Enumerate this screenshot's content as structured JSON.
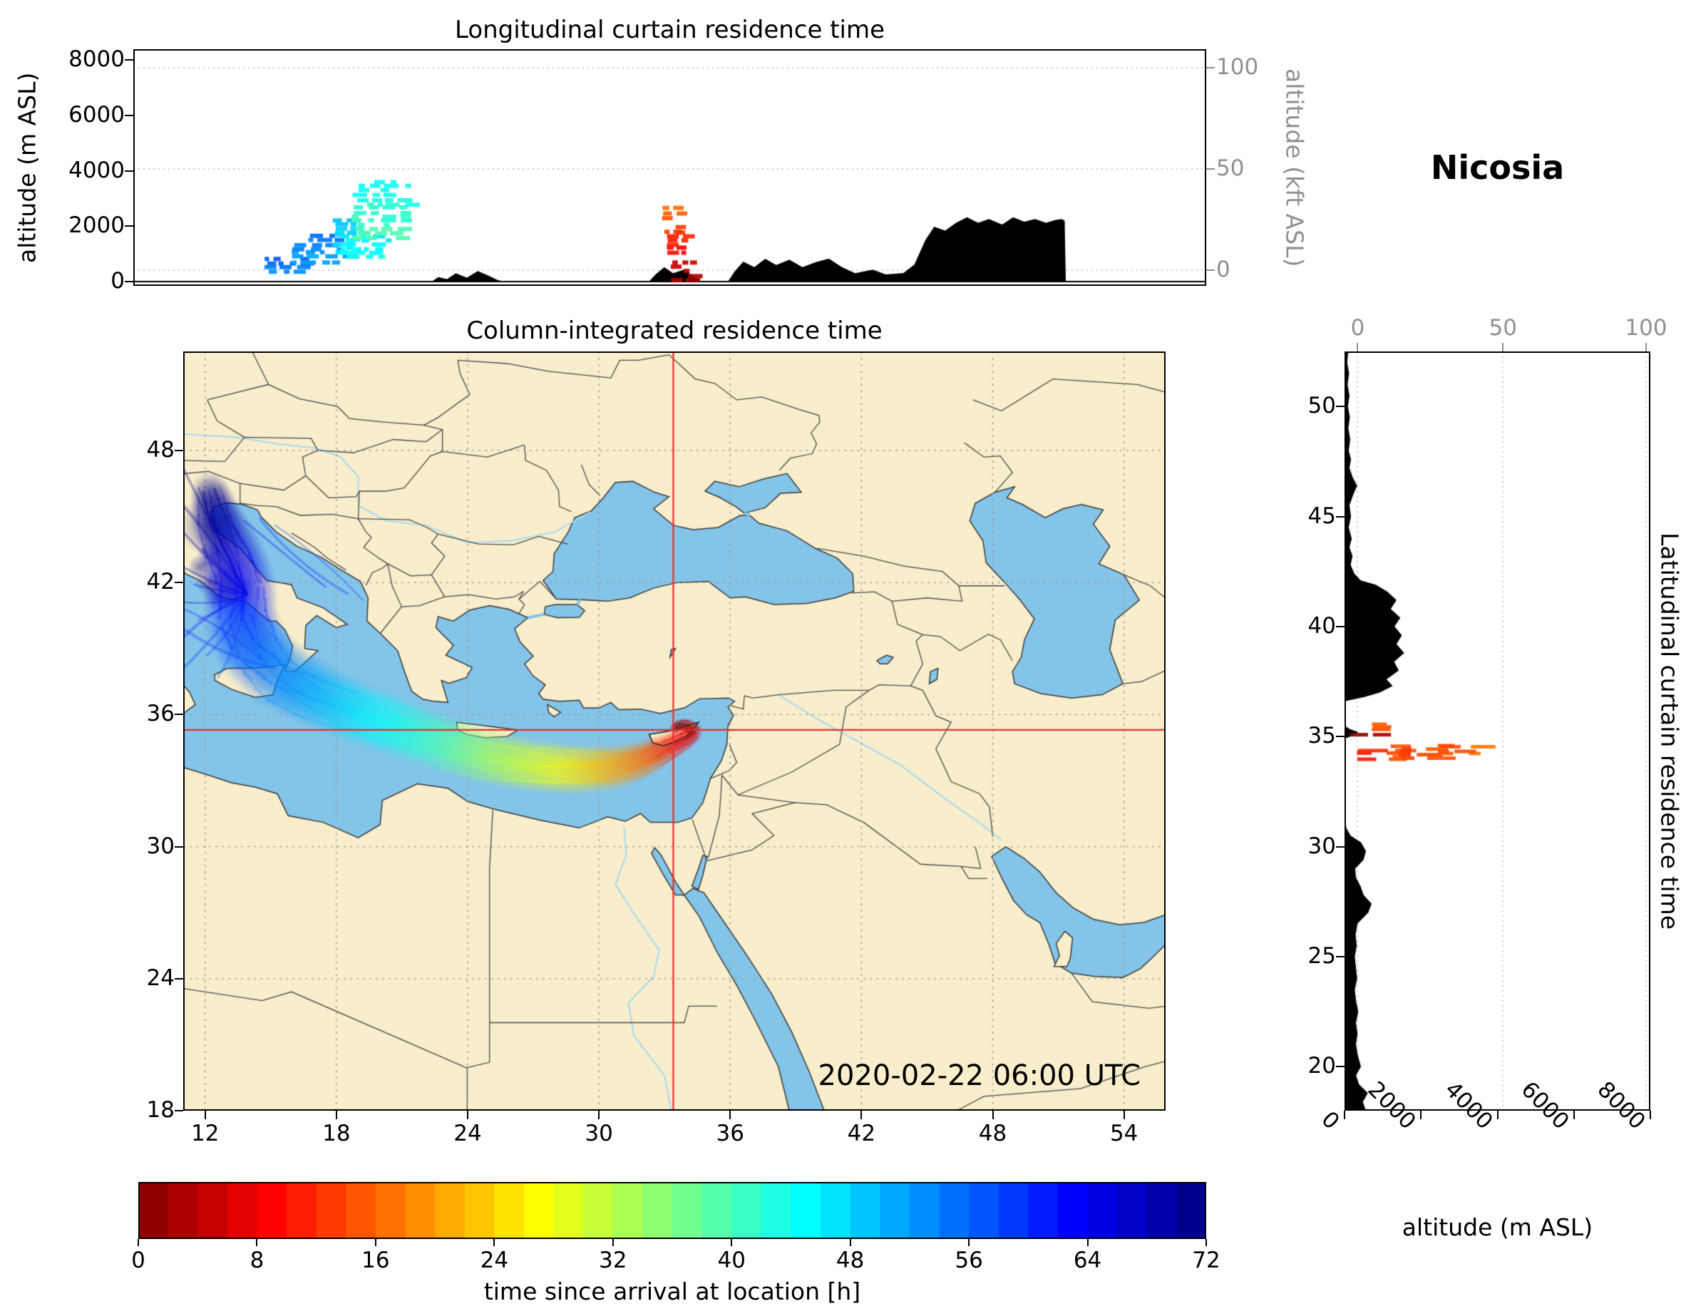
{
  "figure": {
    "station": "Nicosia",
    "timestamp": "2020-02-22 06:00 UTC"
  },
  "panels": {
    "top": {
      "title": "Longitudinal curtain residence time",
      "ylabel": "altitude (m ASL)",
      "ylabel_right": "altitude (kft ASL)",
      "yticks": [
        0,
        2000,
        4000,
        6000,
        8000
      ],
      "yticks_right": [
        0,
        50,
        100
      ]
    },
    "map": {
      "title": "Column-integrated residence time",
      "xticks": [
        12,
        18,
        24,
        30,
        36,
        42,
        48,
        54
      ],
      "yticks": [
        18,
        24,
        30,
        36,
        42,
        48
      ]
    },
    "right": {
      "side_label": "Latitudinal curtain residence time",
      "xlabel": "altitude (m ASL)",
      "xticks": [
        0,
        2000,
        4000,
        6000,
        8000
      ],
      "xticks_top": [
        0,
        50,
        100
      ],
      "yticks": [
        20,
        25,
        30,
        35,
        40,
        45,
        50
      ]
    },
    "colorbar": {
      "label": "time since arrival at location [h]",
      "ticks": [
        0,
        8,
        16,
        24,
        32,
        40,
        48,
        56,
        64,
        72
      ]
    }
  },
  "chart_data": {
    "type": "heatmap",
    "description": "Backward-plume residence time for receptor Nicosia: column-integrated map plus longitudinal (altitude vs longitude) and latitudinal (altitude vs latitude) curtains. Color encodes time since arrival at location, 0-72 h, reversed-jet colormap (0 h dark red at Cyprus, 72 h dark blue over northern Italy). Black silhouettes are terrain profiles.",
    "receptor": {
      "name": "Nicosia",
      "lon": 33.4,
      "lat": 35.3
    },
    "color_scale": {
      "unit": "h",
      "min": 0,
      "max": 72,
      "colormap": "jet reversed",
      "n_segments": 36
    },
    "map_axes": {
      "lon_range": [
        11,
        55.9
      ],
      "lat_range": [
        18,
        52.5
      ],
      "grid_step_deg": 6
    },
    "top_curtain_axes": {
      "lon_range": [
        8.7,
        57.6
      ],
      "alt_range_m": [
        0,
        8000
      ]
    },
    "right_curtain_axes": {
      "lat_range": [
        18,
        52.5
      ],
      "alt_range_m": [
        0,
        8000
      ]
    },
    "plume_path": [
      [
        12.2,
        46.2,
        1.4,
        72
      ],
      [
        12.6,
        44.8,
        2.0,
        69
      ],
      [
        13.3,
        43.2,
        2.4,
        66
      ],
      [
        13.7,
        41.8,
        2.6,
        63
      ],
      [
        13.6,
        40.3,
        2.8,
        60
      ],
      [
        14.2,
        38.9,
        2.8,
        57
      ],
      [
        15.4,
        37.8,
        2.7,
        54
      ],
      [
        17.1,
        36.9,
        2.5,
        51
      ],
      [
        18.9,
        36.1,
        2.4,
        47
      ],
      [
        20.8,
        35.4,
        2.3,
        44
      ],
      [
        22.8,
        34.7,
        2.2,
        40
      ],
      [
        24.8,
        34.1,
        2.1,
        34
      ],
      [
        26.8,
        33.7,
        2.0,
        30
      ],
      [
        28.8,
        33.5,
        1.9,
        26
      ],
      [
        30.7,
        33.6,
        1.7,
        21
      ],
      [
        32.1,
        34.0,
        1.4,
        17
      ],
      [
        33.1,
        34.5,
        1.1,
        12
      ],
      [
        33.9,
        34.9,
        0.9,
        8
      ],
      [
        34.35,
        35.2,
        0.7,
        5
      ],
      [
        34.1,
        35.5,
        0.55,
        3
      ],
      [
        33.7,
        35.55,
        0.45,
        1.5
      ],
      [
        33.45,
        35.35,
        0.4,
        0.5
      ]
    ],
    "plume_cores": [
      [
        12.4,
        43.2,
        0.75,
        68
      ],
      [
        12.9,
        42.3,
        0.85,
        67
      ],
      [
        13.4,
        41.6,
        0.85,
        66
      ],
      [
        12.2,
        42.0,
        0.65,
        69
      ],
      [
        11.8,
        42.7,
        0.6,
        70
      ],
      [
        12.6,
        41.4,
        0.7,
        67
      ],
      [
        12.3,
        44.6,
        1.5,
        71
      ]
    ],
    "plume_fan_streaks": [
      [
        13.9,
        41.5,
        11,
        47.2,
        72
      ],
      [
        13.9,
        41.5,
        11.7,
        46.3,
        71
      ],
      [
        13.9,
        41.5,
        11,
        45.5,
        70
      ],
      [
        13.9,
        41.5,
        12.3,
        44.9,
        70
      ],
      [
        13.9,
        41.5,
        11,
        44.3,
        69
      ],
      [
        13.9,
        41.5,
        11.9,
        43.5,
        69
      ],
      [
        13.9,
        41.5,
        11,
        42.7,
        68
      ],
      [
        13.9,
        41.5,
        11.5,
        41.9,
        67
      ],
      [
        13.9,
        41.5,
        11,
        41.1,
        66
      ],
      [
        13.9,
        41.5,
        11.7,
        40.3,
        64
      ],
      [
        13.9,
        41.5,
        11,
        39.5,
        62
      ],
      [
        13.9,
        41.5,
        12.1,
        38.7,
        60
      ],
      [
        13.9,
        41.5,
        11,
        38.1,
        59
      ],
      [
        13.9,
        41.5,
        12.6,
        37.7,
        58
      ],
      [
        13.8,
        44.8,
        17.5,
        41.8,
        62
      ],
      [
        14.5,
        44.9,
        18.5,
        41.5,
        60
      ],
      [
        15.2,
        44.6,
        19.2,
        41.2,
        58
      ],
      [
        11,
        40.8,
        14.6,
        38.5,
        60
      ],
      [
        11,
        39.9,
        15.2,
        38.1,
        59
      ]
    ],
    "top_curtain_clusters": [
      {
        "lon": [
          14.6,
          16.7
        ],
        "alt_m": [
          250,
          900
        ],
        "t_h": [
          52,
          58
        ]
      },
      {
        "lon": [
          15.7,
          18.4
        ],
        "alt_m": [
          650,
          1700
        ],
        "t_h": [
          50,
          56
        ]
      },
      {
        "lon": [
          17.7,
          19.3
        ],
        "alt_m": [
          1000,
          2300
        ],
        "t_h": [
          45,
          50
        ]
      },
      {
        "lon": [
          18.1,
          20.3
        ],
        "alt_m": [
          800,
          1700
        ],
        "t_h": [
          42,
          48
        ]
      },
      {
        "lon": [
          18.6,
          21.5
        ],
        "alt_m": [
          1500,
          3650
        ],
        "t_h": [
          38,
          46
        ]
      },
      {
        "lon": [
          33.1,
          34.2
        ],
        "alt_m": [
          0,
          900
        ],
        "t_h": [
          1,
          8
        ]
      },
      {
        "lon": [
          33.0,
          33.9
        ],
        "alt_m": [
          850,
          1850
        ],
        "t_h": [
          7,
          14
        ]
      },
      {
        "lon": [
          32.8,
          33.6
        ],
        "alt_m": [
          1750,
          2700
        ],
        "t_h": [
          11,
          18
        ]
      }
    ],
    "right_curtain_clusters": [
      {
        "lat": [
          34.85,
          35.3
        ],
        "alt_m": [
          120,
          800
        ],
        "t_h": [
          0,
          4
        ]
      },
      {
        "lat": [
          33.9,
          34.6
        ],
        "alt_m": [
          300,
          1500
        ],
        "t_h": [
          10,
          16
        ]
      },
      {
        "lat": [
          33.95,
          34.55
        ],
        "alt_m": [
          1400,
          2600
        ],
        "t_h": [
          12,
          17
        ]
      },
      {
        "lat": [
          34.05,
          34.7
        ],
        "alt_m": [
          2400,
          3700
        ],
        "t_h": [
          13,
          19
        ]
      },
      {
        "lat": [
          35.25,
          35.65
        ],
        "alt_m": [
          700,
          1400
        ],
        "t_h": [
          14,
          20
        ]
      }
    ],
    "terrain_profile_lon": [
      [
        8.7,
        0
      ],
      [
        22.3,
        0
      ],
      [
        22.6,
        160
      ],
      [
        23.0,
        90
      ],
      [
        23.4,
        300
      ],
      [
        23.9,
        140
      ],
      [
        24.4,
        380
      ],
      [
        24.9,
        210
      ],
      [
        25.3,
        60
      ],
      [
        25.6,
        0
      ],
      [
        32.2,
        0
      ],
      [
        32.5,
        260
      ],
      [
        32.9,
        520
      ],
      [
        33.3,
        300
      ],
      [
        33.8,
        430
      ],
      [
        34.3,
        160
      ],
      [
        34.6,
        0
      ],
      [
        35.8,
        0
      ],
      [
        36.1,
        360
      ],
      [
        36.5,
        720
      ],
      [
        37.0,
        520
      ],
      [
        37.5,
        820
      ],
      [
        38.0,
        600
      ],
      [
        38.6,
        790
      ],
      [
        39.2,
        520
      ],
      [
        39.8,
        700
      ],
      [
        40.4,
        830
      ],
      [
        41.0,
        520
      ],
      [
        41.6,
        300
      ],
      [
        42.4,
        430
      ],
      [
        43.0,
        260
      ],
      [
        43.8,
        310
      ],
      [
        44.3,
        620
      ],
      [
        44.8,
        1500
      ],
      [
        45.2,
        1980
      ],
      [
        45.7,
        1840
      ],
      [
        46.2,
        2120
      ],
      [
        46.7,
        2320
      ],
      [
        47.2,
        2120
      ],
      [
        47.7,
        2260
      ],
      [
        48.3,
        2060
      ],
      [
        48.8,
        2320
      ],
      [
        49.3,
        2160
      ],
      [
        49.8,
        2260
      ],
      [
        50.3,
        2120
      ],
      [
        50.7,
        2220
      ],
      [
        51.0,
        2260
      ],
      [
        51.15,
        2200
      ],
      [
        51.2,
        0
      ],
      [
        57.6,
        0
      ]
    ],
    "terrain_profile_lat": [
      [
        18,
        560
      ],
      [
        18.4,
        480
      ],
      [
        18.8,
        610
      ],
      [
        19.2,
        380
      ],
      [
        19.6,
        300
      ],
      [
        20,
        430
      ],
      [
        20.5,
        350
      ],
      [
        21,
        300
      ],
      [
        21.5,
        340
      ],
      [
        22,
        300
      ],
      [
        22.5,
        360
      ],
      [
        23,
        300
      ],
      [
        23.5,
        270
      ],
      [
        24,
        330
      ],
      [
        24.5,
        300
      ],
      [
        25,
        270
      ],
      [
        25.5,
        320
      ],
      [
        26,
        290
      ],
      [
        26.5,
        340
      ],
      [
        27,
        620
      ],
      [
        27.4,
        710
      ],
      [
        27.8,
        500
      ],
      [
        28.2,
        420
      ],
      [
        28.6,
        300
      ],
      [
        29,
        280
      ],
      [
        29.4,
        500
      ],
      [
        29.8,
        560
      ],
      [
        30.2,
        430
      ],
      [
        30.5,
        160
      ],
      [
        30.8,
        60
      ],
      [
        31.1,
        0
      ],
      [
        34.9,
        0
      ],
      [
        35.05,
        220
      ],
      [
        35.2,
        360
      ],
      [
        35.35,
        130
      ],
      [
        35.5,
        0
      ],
      [
        36.6,
        0
      ],
      [
        36.8,
        520
      ],
      [
        37.0,
        920
      ],
      [
        37.3,
        1260
      ],
      [
        37.6,
        1100
      ],
      [
        38.0,
        1420
      ],
      [
        38.4,
        1300
      ],
      [
        38.8,
        1560
      ],
      [
        39.2,
        1360
      ],
      [
        39.6,
        1500
      ],
      [
        40.0,
        1310
      ],
      [
        40.4,
        1460
      ],
      [
        40.8,
        1210
      ],
      [
        41.2,
        1360
      ],
      [
        41.6,
        1110
      ],
      [
        41.9,
        820
      ],
      [
        42.1,
        420
      ],
      [
        42.4,
        260
      ],
      [
        42.8,
        160
      ],
      [
        43.2,
        210
      ],
      [
        43.6,
        130
      ],
      [
        44.0,
        190
      ],
      [
        44.5,
        110
      ],
      [
        45.0,
        170
      ],
      [
        45.5,
        130
      ],
      [
        46.0,
        230
      ],
      [
        46.4,
        330
      ],
      [
        46.8,
        210
      ],
      [
        47.2,
        130
      ],
      [
        47.6,
        170
      ],
      [
        48.0,
        110
      ],
      [
        48.5,
        150
      ],
      [
        49.0,
        100
      ],
      [
        49.5,
        140
      ],
      [
        50.0,
        90
      ],
      [
        50.5,
        130
      ],
      [
        51.0,
        80
      ],
      [
        51.5,
        120
      ],
      [
        52.0,
        70
      ],
      [
        52.5,
        100
      ]
    ]
  }
}
